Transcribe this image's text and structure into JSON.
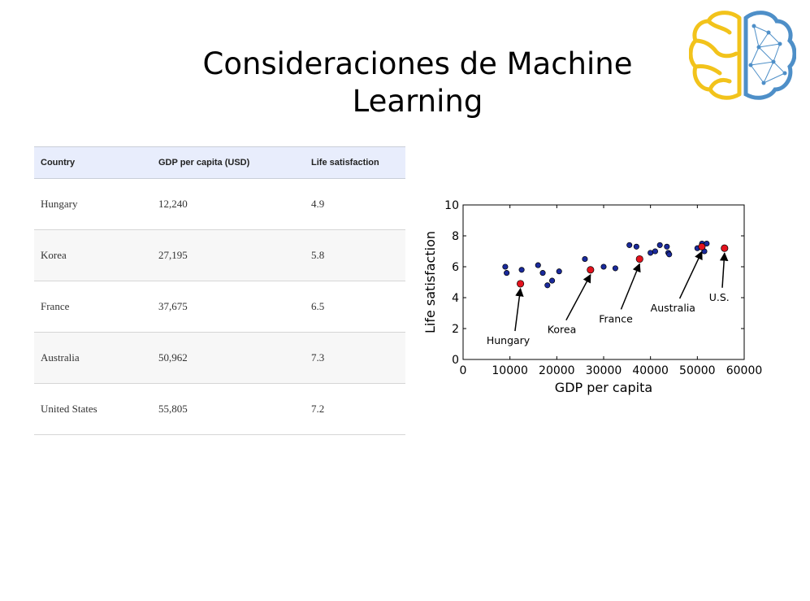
{
  "slide": {
    "title_line1": "Consideraciones de Machine",
    "title_line2": "Learning"
  },
  "table": {
    "headers": [
      "Country",
      "GDP per capita (USD)",
      "Life satisfaction"
    ],
    "rows": [
      [
        "Hungary",
        "12,240",
        "4.9"
      ],
      [
        "Korea",
        "27,195",
        "5.8"
      ],
      [
        "France",
        "37,675",
        "6.5"
      ],
      [
        "Australia",
        "50,962",
        "7.3"
      ],
      [
        "United States",
        "55,805",
        "7.2"
      ]
    ],
    "header_bg": "#e8edfc"
  },
  "logo": {
    "icon": "brain-icon",
    "left_color": "#f2c31b",
    "right_color": "#4e8fc8"
  },
  "chart_data": {
    "type": "scatter",
    "xlabel": "GDP per capita",
    "ylabel": "Life satisfaction",
    "xlim": [
      0,
      60000
    ],
    "ylim": [
      0,
      10
    ],
    "x_ticks": [
      0,
      10000,
      20000,
      30000,
      40000,
      50000,
      60000
    ],
    "x_tick_labels": [
      "0",
      "10000",
      "20000",
      "30000",
      "40000",
      "50000",
      "60000"
    ],
    "y_ticks": [
      0,
      2,
      4,
      6,
      8,
      10
    ],
    "y_tick_labels": [
      "0",
      "2",
      "4",
      "6",
      "8",
      "10"
    ],
    "grid": false,
    "series": [
      {
        "color": "#1a2a9c",
        "points": [
          [
            9000,
            6.0
          ],
          [
            9300,
            5.6
          ],
          [
            12500,
            5.8
          ],
          [
            16000,
            6.1
          ],
          [
            17000,
            5.6
          ],
          [
            18000,
            4.8
          ],
          [
            19000,
            5.1
          ],
          [
            20500,
            5.7
          ],
          [
            26000,
            6.5
          ],
          [
            30000,
            6.0
          ],
          [
            32500,
            5.9
          ],
          [
            35500,
            7.4
          ],
          [
            37000,
            7.3
          ],
          [
            40000,
            6.9
          ],
          [
            41000,
            7.0
          ],
          [
            42000,
            7.4
          ],
          [
            43500,
            7.3
          ],
          [
            43800,
            6.9
          ],
          [
            44000,
            6.8
          ],
          [
            50000,
            7.2
          ],
          [
            51000,
            7.5
          ],
          [
            51500,
            7.0
          ],
          [
            52000,
            7.5
          ]
        ]
      },
      {
        "color": "#e3121d",
        "points": [
          [
            12240,
            4.9
          ],
          [
            27195,
            5.8
          ],
          [
            37675,
            6.5
          ],
          [
            50962,
            7.3
          ],
          [
            55805,
            7.2
          ]
        ]
      }
    ],
    "annotations": [
      {
        "text": "Hungary",
        "point": [
          12240,
          4.9
        ],
        "text_at": [
          5000,
          1.0
        ]
      },
      {
        "text": "Korea",
        "point": [
          27195,
          5.8
        ],
        "text_at": [
          18000,
          1.7
        ]
      },
      {
        "text": "France",
        "point": [
          37675,
          6.5
        ],
        "text_at": [
          29000,
          2.4
        ]
      },
      {
        "text": "Australia",
        "point": [
          50962,
          7.3
        ],
        "text_at": [
          40000,
          3.1
        ]
      },
      {
        "text": "U.S.",
        "point": [
          55805,
          7.2
        ],
        "text_at": [
          52500,
          3.8
        ]
      }
    ]
  }
}
